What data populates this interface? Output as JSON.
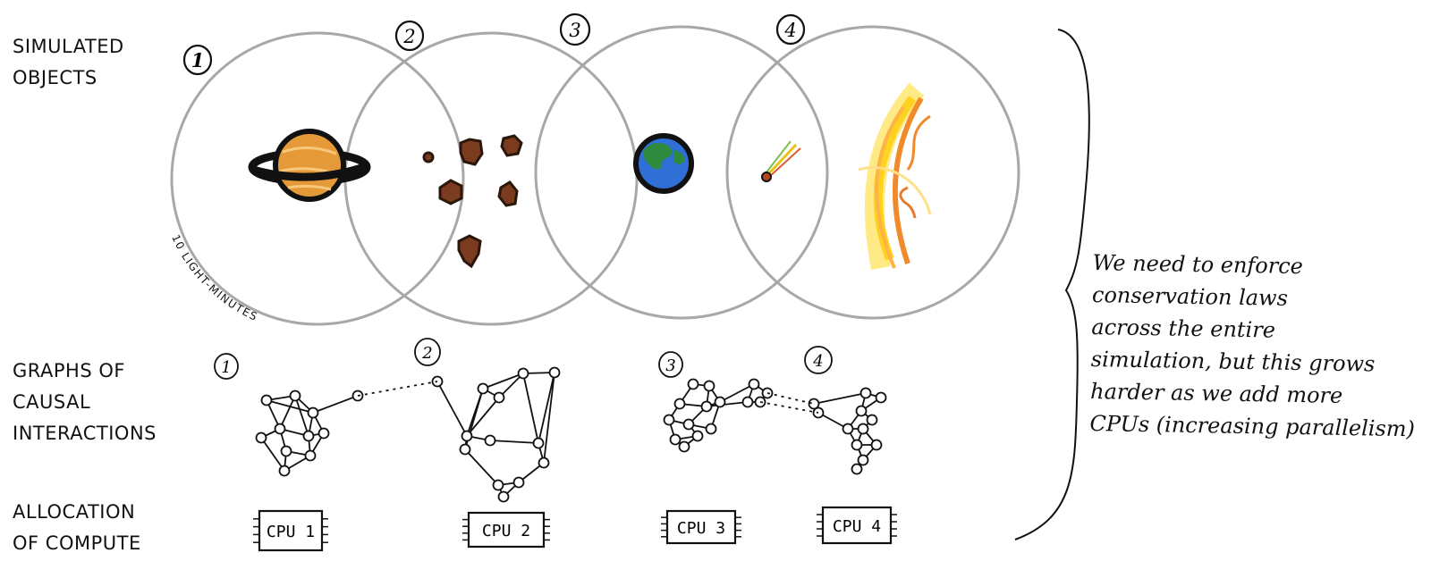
{
  "labels": {
    "simulated_objects": "SIMULATED\nOBJECTS",
    "graphs": "GRAPHS OF\nCAUSAL\nINTERACTIONS",
    "allocation": "ALLOCATION\nOF COMPUTE"
  },
  "regions": [
    "1",
    "2",
    "3",
    "4"
  ],
  "graph_labels": [
    "1",
    "2",
    "3",
    "4"
  ],
  "scale_label": "10 LIGHT-MINUTES",
  "cpus": [
    "CPU 1",
    "CPU 2",
    "CPU 3",
    "CPU 4"
  ],
  "note": "We need to enforce\nconservation laws\nacross the entire\nsimulation, but this grows\nharder as we add more\nCPUs (increasing parallelism)",
  "objects": [
    "ringed-planet",
    "asteroids",
    "earth-planet",
    "comet",
    "star"
  ],
  "colors": {
    "circle": "#a8a8a8",
    "ink": "#111111",
    "planet": "#e59a3a",
    "asteroid": "#7a3b1e",
    "earth_water": "#2f6fd6",
    "earth_land": "#2e8b3e",
    "star_yellow": "#ffd21f",
    "star_orange": "#f08a2a"
  }
}
